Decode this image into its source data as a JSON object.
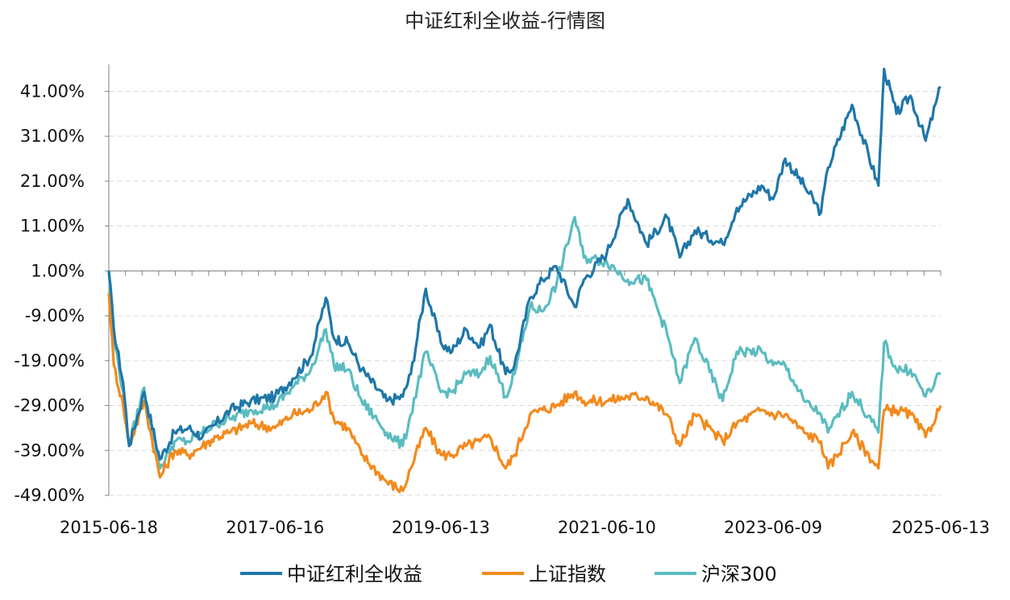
{
  "chart_data": {
    "type": "line",
    "title": "中证红利全收益-行情图",
    "x_ticks": [
      "2015-06-18",
      "2017-06-16",
      "2019-06-13",
      "2021-06-10",
      "2023-06-09",
      "2025-06-13"
    ],
    "y_ticks": [
      "41.00%",
      "31.00%",
      "21.00%",
      "11.00%",
      "1.00%",
      "-9.00%",
      "-19.00%",
      "-29.00%",
      "-39.00%",
      "-49.00%"
    ],
    "y_tick_values": [
      41,
      31,
      21,
      11,
      1,
      -9,
      -19,
      -29,
      -39,
      -49
    ],
    "ylim": [
      -49,
      47
    ],
    "xlim": [
      "2015-06-18",
      "2025-06-13"
    ],
    "axis_cross_y": 1,
    "grid": "horizontal dashed",
    "legend_position": "bottom",
    "series": [
      {
        "name": "中证红利全收益",
        "color": "#1f77a8",
        "points": [
          [
            "2015-06-18",
            1
          ],
          [
            "2015-07-10",
            -12
          ],
          [
            "2015-08-20",
            -24
          ],
          [
            "2015-09-15",
            -38
          ],
          [
            "2015-11-20",
            -26
          ],
          [
            "2016-01-28",
            -41
          ],
          [
            "2016-04-01",
            -35
          ],
          [
            "2016-06-01",
            -34
          ],
          [
            "2016-08-01",
            -36
          ],
          [
            "2016-10-01",
            -33
          ],
          [
            "2016-12-01",
            -30
          ],
          [
            "2017-03-01",
            -28
          ],
          [
            "2017-06-16",
            -27
          ],
          [
            "2017-09-01",
            -23
          ],
          [
            "2017-11-20",
            -18
          ],
          [
            "2018-01-25",
            -5
          ],
          [
            "2018-03-01",
            -14
          ],
          [
            "2018-05-01",
            -15
          ],
          [
            "2018-07-01",
            -21
          ],
          [
            "2018-10-19",
            -28
          ],
          [
            "2018-12-28",
            -27
          ],
          [
            "2019-02-01",
            -22
          ],
          [
            "2019-04-08",
            -3
          ],
          [
            "2019-06-13",
            -15
          ],
          [
            "2019-08-01",
            -17
          ],
          [
            "2019-10-01",
            -12
          ],
          [
            "2019-12-01",
            -16
          ],
          [
            "2020-01-15",
            -11
          ],
          [
            "2020-03-23",
            -22
          ],
          [
            "2020-05-01",
            -20
          ],
          [
            "2020-07-08",
            -5
          ],
          [
            "2020-09-01",
            -1
          ],
          [
            "2020-11-01",
            2
          ],
          [
            "2021-01-20",
            -7
          ],
          [
            "2021-03-01",
            -1
          ],
          [
            "2021-06-10",
            5
          ],
          [
            "2021-09-10",
            17
          ],
          [
            "2021-12-01",
            7
          ],
          [
            "2022-03-01",
            13
          ],
          [
            "2022-04-26",
            4
          ],
          [
            "2022-07-01",
            10
          ],
          [
            "2022-10-31",
            7
          ],
          [
            "2023-01-01",
            15
          ],
          [
            "2023-04-20",
            20
          ],
          [
            "2023-06-09",
            17
          ],
          [
            "2023-08-01",
            26
          ],
          [
            "2023-10-23",
            20
          ],
          [
            "2024-01-05",
            14
          ],
          [
            "2024-02-05",
            24
          ],
          [
            "2024-05-20",
            38
          ],
          [
            "2024-09-13",
            20
          ],
          [
            "2024-10-08",
            46
          ],
          [
            "2024-12-01",
            36
          ],
          [
            "2025-02-01",
            40
          ],
          [
            "2025-04-08",
            30
          ],
          [
            "2025-06-13",
            42
          ]
        ]
      },
      {
        "name": "上证指数",
        "color": "#f28a1d",
        "points": [
          [
            "2015-06-18",
            -4
          ],
          [
            "2015-07-10",
            -20
          ],
          [
            "2015-08-20",
            -29
          ],
          [
            "2015-09-15",
            -38
          ],
          [
            "2015-11-20",
            -28
          ],
          [
            "2016-01-28",
            -45
          ],
          [
            "2016-04-01",
            -39
          ],
          [
            "2016-06-01",
            -40
          ],
          [
            "2016-08-01",
            -38
          ],
          [
            "2016-10-01",
            -36
          ],
          [
            "2016-12-01",
            -35
          ],
          [
            "2017-03-01",
            -33
          ],
          [
            "2017-06-16",
            -34
          ],
          [
            "2017-09-01",
            -31
          ],
          [
            "2017-11-20",
            -30
          ],
          [
            "2018-01-25",
            -26
          ],
          [
            "2018-03-01",
            -32
          ],
          [
            "2018-05-01",
            -34
          ],
          [
            "2018-07-01",
            -40
          ],
          [
            "2018-10-19",
            -46
          ],
          [
            "2018-12-28",
            -48
          ],
          [
            "2019-02-01",
            -43
          ],
          [
            "2019-04-08",
            -34
          ],
          [
            "2019-06-13",
            -40
          ],
          [
            "2019-08-01",
            -40
          ],
          [
            "2019-10-01",
            -38
          ],
          [
            "2019-12-01",
            -37
          ],
          [
            "2020-01-15",
            -36
          ],
          [
            "2020-03-23",
            -43
          ],
          [
            "2020-05-01",
            -40
          ],
          [
            "2020-07-08",
            -31
          ],
          [
            "2020-09-01",
            -30
          ],
          [
            "2020-11-01",
            -29
          ],
          [
            "2021-01-20",
            -26
          ],
          [
            "2021-03-01",
            -28
          ],
          [
            "2021-06-10",
            -28
          ],
          [
            "2021-09-10",
            -27
          ],
          [
            "2021-12-01",
            -27
          ],
          [
            "2022-03-01",
            -31
          ],
          [
            "2022-04-26",
            -38
          ],
          [
            "2022-07-01",
            -31
          ],
          [
            "2022-10-31",
            -37
          ],
          [
            "2023-01-01",
            -33
          ],
          [
            "2023-04-20",
            -30
          ],
          [
            "2023-06-09",
            -31
          ],
          [
            "2023-08-01",
            -31
          ],
          [
            "2023-10-23",
            -35
          ],
          [
            "2024-01-05",
            -37
          ],
          [
            "2024-02-05",
            -43
          ],
          [
            "2024-05-20",
            -35
          ],
          [
            "2024-09-13",
            -43
          ],
          [
            "2024-10-08",
            -30
          ],
          [
            "2024-12-01",
            -30
          ],
          [
            "2025-02-01",
            -31
          ],
          [
            "2025-04-08",
            -36
          ],
          [
            "2025-06-13",
            -29
          ]
        ]
      },
      {
        "name": "沪深300",
        "color": "#5bbcc0",
        "points": [
          [
            "2015-06-18",
            1
          ],
          [
            "2015-07-10",
            -14
          ],
          [
            "2015-08-20",
            -26
          ],
          [
            "2015-09-15",
            -38
          ],
          [
            "2015-11-20",
            -25
          ],
          [
            "2016-01-28",
            -43
          ],
          [
            "2016-04-01",
            -37
          ],
          [
            "2016-06-01",
            -37
          ],
          [
            "2016-08-01",
            -35
          ],
          [
            "2016-10-01",
            -33
          ],
          [
            "2016-12-01",
            -32
          ],
          [
            "2017-03-01",
            -30
          ],
          [
            "2017-06-16",
            -29
          ],
          [
            "2017-09-01",
            -25
          ],
          [
            "2017-11-20",
            -21
          ],
          [
            "2018-01-25",
            -12
          ],
          [
            "2018-03-01",
            -20
          ],
          [
            "2018-05-01",
            -21
          ],
          [
            "2018-07-01",
            -28
          ],
          [
            "2018-10-19",
            -35
          ],
          [
            "2018-12-28",
            -38
          ],
          [
            "2019-02-01",
            -31
          ],
          [
            "2019-04-08",
            -17
          ],
          [
            "2019-06-13",
            -26
          ],
          [
            "2019-08-01",
            -26
          ],
          [
            "2019-10-01",
            -22
          ],
          [
            "2019-12-01",
            -22
          ],
          [
            "2020-01-15",
            -18
          ],
          [
            "2020-03-23",
            -27
          ],
          [
            "2020-05-01",
            -22
          ],
          [
            "2020-07-08",
            -7
          ],
          [
            "2020-09-01",
            -8
          ],
          [
            "2020-11-01",
            -2
          ],
          [
            "2021-01-20",
            13
          ],
          [
            "2021-03-01",
            4
          ],
          [
            "2021-06-10",
            3
          ],
          [
            "2021-09-10",
            -1
          ],
          [
            "2021-12-01",
            -1
          ],
          [
            "2022-03-01",
            -13
          ],
          [
            "2022-04-26",
            -24
          ],
          [
            "2022-07-01",
            -14
          ],
          [
            "2022-10-31",
            -28
          ],
          [
            "2023-01-01",
            -17
          ],
          [
            "2023-04-20",
            -17
          ],
          [
            "2023-06-09",
            -20
          ],
          [
            "2023-08-01",
            -20
          ],
          [
            "2023-10-23",
            -28
          ],
          [
            "2024-01-05",
            -31
          ],
          [
            "2024-02-05",
            -35
          ],
          [
            "2024-05-20",
            -26
          ],
          [
            "2024-09-13",
            -35
          ],
          [
            "2024-10-08",
            -15
          ],
          [
            "2024-12-01",
            -21
          ],
          [
            "2025-02-01",
            -21
          ],
          [
            "2025-04-08",
            -27
          ],
          [
            "2025-06-13",
            -22
          ]
        ]
      }
    ]
  }
}
